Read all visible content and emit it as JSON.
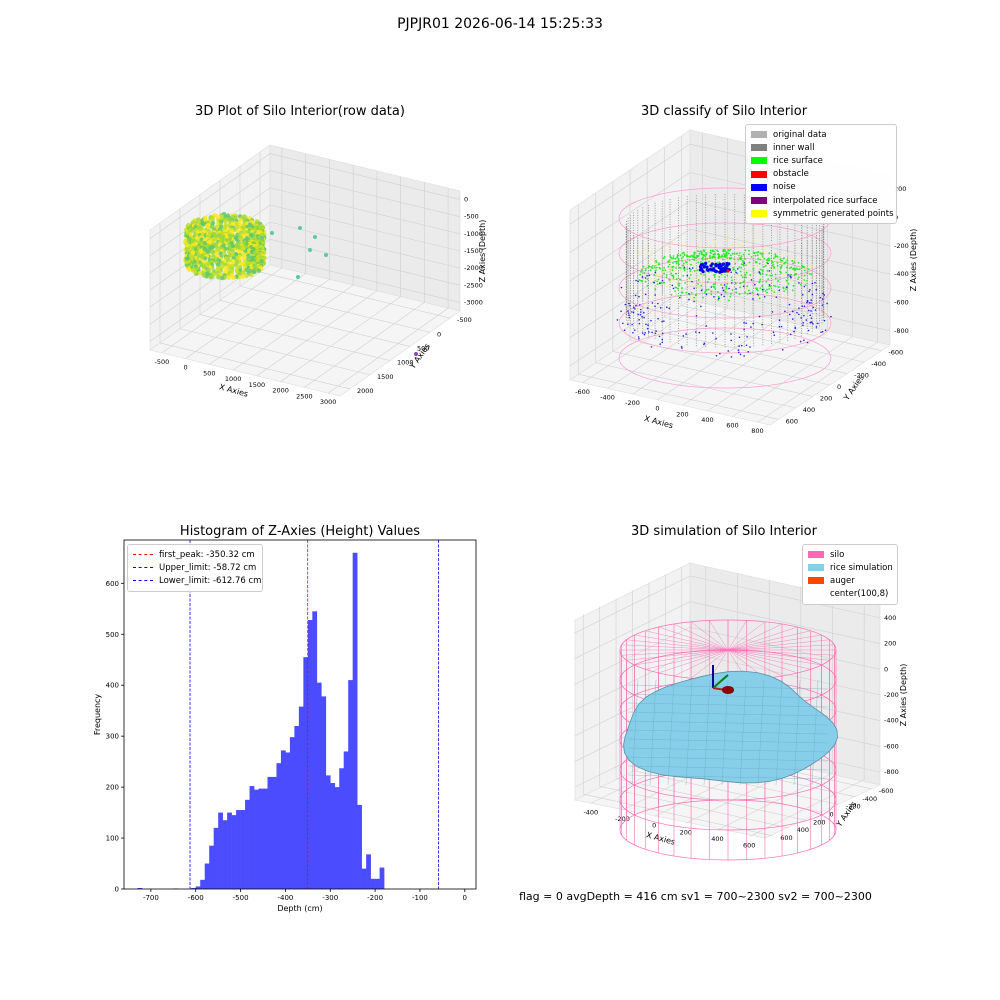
{
  "figure_title": "PJPJR01 2026-06-14 15:25:33",
  "status_line": "flag = 0     avgDepth = 416 cm  sv1 = 700~2300  sv2 = 700~2300",
  "colors": {
    "hist_bar": "#4c4cff",
    "first_peak_line": "#ff0000",
    "limit_line": "#0000ff",
    "silo": "#ff69b4",
    "rice_simulation": "#87ceeb",
    "auger": "#ff4500",
    "original_data": "#b0b0b0",
    "inner_wall": "#808080",
    "rice_surface": "#00ff00",
    "obstacle": "#ff0000",
    "noise": "#0000ff",
    "interpolated": "#800080",
    "symmetric": "#ffff00"
  },
  "chart_data": [
    {
      "type": "scatter",
      "projection": "3d",
      "title": "3D Plot of Silo Interior(row data)",
      "xlabel": "X Axies",
      "ylabel": "Y Axies",
      "zlabel": "Z Axies (Depth)",
      "x_ticks": [
        "-500",
        "0",
        "500",
        "1000",
        "1500",
        "2000",
        "2500",
        "3000"
      ],
      "y_ticks": [
        "-500",
        "0",
        "500",
        "1000",
        "1500",
        "2000"
      ],
      "z_ticks": [
        "0",
        "-500",
        "-1000",
        "-1500",
        "-2000",
        "-2500",
        "-3000"
      ],
      "xlim": [
        -700,
        3100
      ],
      "ylim": [
        -700,
        2100
      ],
      "zlim": [
        -3400,
        150
      ],
      "colormap": "viridis"
    },
    {
      "type": "scatter",
      "projection": "3d",
      "title": "3D classify of Silo Interior",
      "xlabel": "X Axies",
      "ylabel": "Y Axies",
      "zlabel": "Z Axies (Depth)",
      "x_ticks": [
        "-600",
        "-400",
        "-200",
        "0",
        "200",
        "400",
        "600",
        "800"
      ],
      "y_ticks": [
        "-600",
        "-400",
        "-200",
        "0",
        "200",
        "400",
        "600"
      ],
      "z_ticks": [
        "200",
        "0",
        "-200",
        "-400",
        "-600",
        "-800"
      ],
      "xlim": [
        -650,
        850
      ],
      "ylim": [
        -700,
        700
      ],
      "zlim": [
        -900,
        300
      ],
      "legend_position": "upper right",
      "legend": [
        {
          "label": "original data",
          "color": "#b0b0b0"
        },
        {
          "label": "inner wall",
          "color": "#808080"
        },
        {
          "label": "rice surface",
          "color": "#00ff00"
        },
        {
          "label": "obstacle",
          "color": "#ff0000"
        },
        {
          "label": "noise",
          "color": "#0000ff"
        },
        {
          "label": "interpolated rice surface",
          "color": "#800080"
        },
        {
          "label": "symmetric generated points",
          "color": "#ffff00"
        }
      ]
    },
    {
      "type": "bar",
      "title": "Histogram of Z-Axies (Height) Values",
      "xlabel": "Depth (cm)",
      "ylabel": "Frequency",
      "xlim": [
        -760,
        25
      ],
      "ylim": [
        0,
        685
      ],
      "x_ticks": [
        -700,
        -600,
        -500,
        -400,
        -300,
        -200,
        -100,
        0
      ],
      "y_ticks": [
        0,
        100,
        200,
        300,
        400,
        500,
        600
      ],
      "bin_start": -730,
      "bin_width": 10,
      "values": [
        2,
        0,
        0,
        0,
        0,
        0,
        0,
        0,
        1,
        0,
        0,
        0,
        2,
        5,
        18,
        50,
        85,
        120,
        150,
        135,
        150,
        145,
        155,
        155,
        175,
        202,
        195,
        197,
        197,
        220,
        220,
        247,
        272,
        268,
        298,
        320,
        358,
        455,
        528,
        545,
        405,
        378,
        223,
        208,
        200,
        237,
        270,
        410,
        660,
        165,
        40,
        68,
        20,
        20,
        42
      ],
      "vlines": [
        {
          "name": "first_peak",
          "value": -350.32,
          "label": "first_peak: -350.32 cm"
        },
        {
          "name": "Upper_limit",
          "value": -58.72,
          "label": "Upper_limit: -58.72 cm"
        },
        {
          "name": "Lower_limit",
          "value": -612.76,
          "label": "Lower_limit: -612.76 cm"
        }
      ],
      "legend_position": "upper left"
    },
    {
      "type": "surface",
      "projection": "3d",
      "title": "3D simulation of Silo Interior",
      "xlabel": "X Axies",
      "ylabel": "Y Axies",
      "zlabel": "Z Axies (Depth)",
      "x_ticks": [
        "-400",
        "-200",
        "0",
        "200",
        "400",
        "600"
      ],
      "y_ticks": [
        "-600",
        "-400",
        "-200",
        "0",
        "200",
        "400",
        "600"
      ],
      "z_ticks": [
        "400",
        "200",
        "0",
        "-200",
        "-400",
        "-600",
        "-800"
      ],
      "xlim": [
        -550,
        750
      ],
      "ylim": [
        -700,
        700
      ],
      "zlim": [
        -900,
        450
      ],
      "legend_position": "upper right",
      "legend": [
        {
          "label": "silo",
          "color": "#ff69b4"
        },
        {
          "label": "rice simulation",
          "color": "#87ceeb"
        },
        {
          "label": "auger",
          "color": "#ff4500"
        },
        {
          "label": "center(100,8)",
          "color": ""
        }
      ]
    }
  ]
}
